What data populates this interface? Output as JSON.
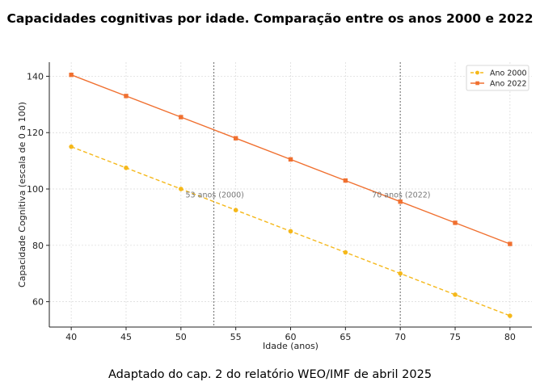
{
  "title": "Capacidades cognitivas por idade. Comparação entre os anos 2000 e 2022",
  "caption": "Adaptado do cap. 2 do relatório WEO/IMF de abril 2025",
  "chart_data": {
    "type": "line",
    "xlabel": "Idade (anos)",
    "ylabel": "Capacidade Cognitiva (escala de 0 a 100)",
    "x": [
      40,
      45,
      50,
      55,
      60,
      65,
      70,
      75,
      80
    ],
    "xticks": [
      "40",
      "45",
      "50",
      "55",
      "60",
      "65",
      "70",
      "75",
      "80"
    ],
    "yticks": [
      "60",
      "80",
      "100",
      "120",
      "140"
    ],
    "xlim": [
      38,
      82
    ],
    "ylim": [
      51,
      145
    ],
    "grid": true,
    "legend_position": "top-right",
    "series": [
      {
        "name": "Ano 2000",
        "values": [
          115,
          107.5,
          100,
          92.5,
          85,
          77.5,
          70,
          62.5,
          55
        ],
        "color": "#f5b81a",
        "dash": "dashed",
        "marker": "circle"
      },
      {
        "name": "Ano 2022",
        "values": [
          140.5,
          133,
          125.5,
          118,
          110.5,
          103,
          95.5,
          88,
          80.5
        ],
        "color": "#f07030",
        "dash": "solid",
        "marker": "square"
      }
    ],
    "annotations": [
      {
        "x": 53,
        "y": 98,
        "text": "53 anos (2000)"
      },
      {
        "x": 70,
        "y": 98,
        "text": "70 anos (2022)"
      }
    ],
    "vlines": [
      53,
      70
    ]
  }
}
